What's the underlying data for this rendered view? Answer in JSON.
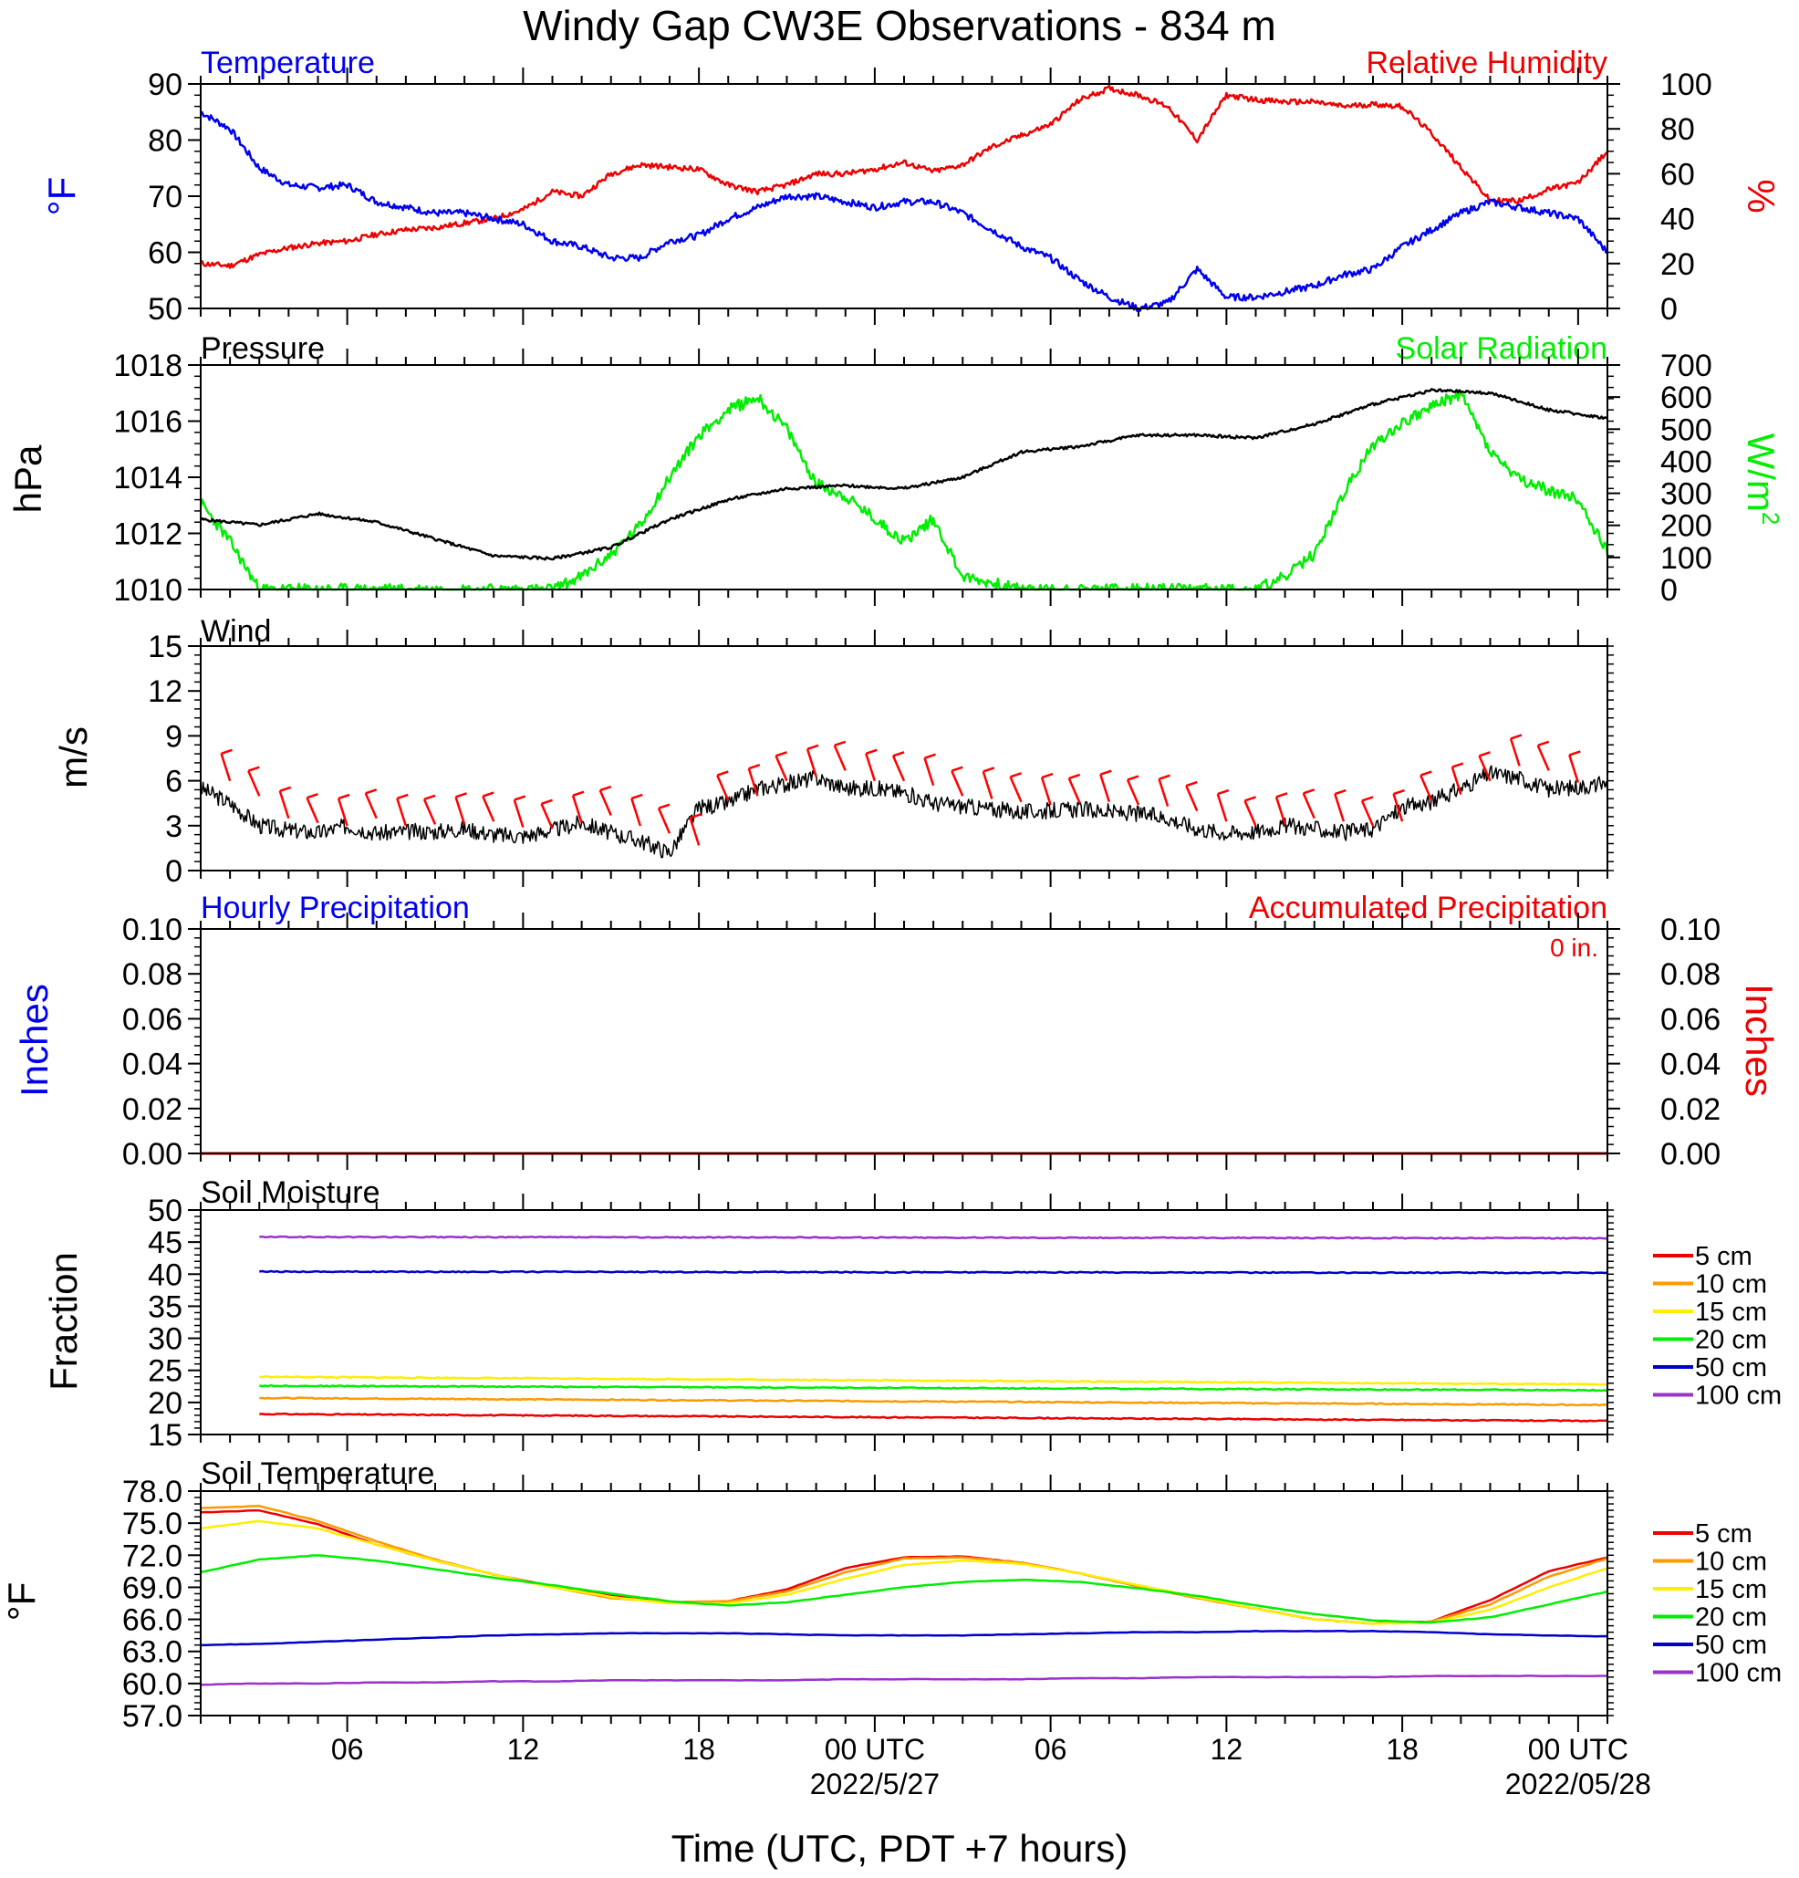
{
  "title": "Windy Gap CW3E Observations - 834 m",
  "xlabel": "Time (UTC, PDT +7 hours)",
  "colors": {
    "temperature": "#0000ee",
    "humidity": "#ee0000",
    "pressure": "#000000",
    "solar": "#00ee00",
    "wind_barb": "#ff0000",
    "accum": "#ee0000",
    "hourly": "#0000ee"
  },
  "x_axis": {
    "range_hours": [
      0,
      48
    ],
    "major_ticks": [
      {
        "h": 5,
        "label": "06",
        "date": ""
      },
      {
        "h": 11,
        "label": "12",
        "date": ""
      },
      {
        "h": 17,
        "label": "18",
        "date": ""
      },
      {
        "h": 23,
        "label": "00 UTC",
        "date": "2022/5/27"
      },
      {
        "h": 29,
        "label": "06",
        "date": ""
      },
      {
        "h": 35,
        "label": "12",
        "date": ""
      },
      {
        "h": 41,
        "label": "18",
        "date": ""
      },
      {
        "h": 47,
        "label": "00 UTC",
        "date": "2022/05/28"
      }
    ]
  },
  "panels": {
    "temp_rh": {
      "left_title": "Temperature",
      "right_title": "Relative Humidity",
      "left_unit": "°F",
      "right_unit": "%",
      "ylim_left": [
        50,
        90
      ],
      "yticks_left": [
        "50",
        "60",
        "70",
        "80",
        "90"
      ],
      "ylim_right": [
        0,
        100
      ],
      "yticks_right": [
        "0",
        "20",
        "40",
        "60",
        "80",
        "100"
      ]
    },
    "pressure_solar": {
      "left_title": "Pressure",
      "right_title": "Solar Radiation",
      "left_unit": "hPa",
      "right_unit": "W/m2",
      "ylim_left": [
        1010,
        1018
      ],
      "yticks_left": [
        "1010",
        "1012",
        "1014",
        "1016",
        "1018"
      ],
      "ylim_right": [
        0,
        700
      ],
      "yticks_right": [
        "0",
        "100",
        "200",
        "300",
        "400",
        "500",
        "600",
        "700"
      ]
    },
    "wind": {
      "left_title": "Wind",
      "left_unit": "m/s",
      "ylim": [
        0,
        15
      ],
      "yticks": [
        "0",
        "3",
        "6",
        "9",
        "12",
        "15"
      ]
    },
    "precip": {
      "left_title": "Hourly Precipitation",
      "right_title": "Accumulated Precipitation",
      "accum_label": "0 in.",
      "left_unit": "Inches",
      "right_unit": "Inches",
      "ylim": [
        0,
        0.1
      ],
      "yticks": [
        "0.00",
        "0.02",
        "0.04",
        "0.06",
        "0.08",
        "0.10"
      ]
    },
    "soil_moisture": {
      "left_title": "Soil Moisture",
      "left_unit": "Fraction",
      "ylim": [
        15,
        50
      ],
      "yticks": [
        "15",
        "20",
        "25",
        "30",
        "35",
        "40",
        "45",
        "50"
      ]
    },
    "soil_temp": {
      "left_title": "Soil Temperature",
      "left_unit": "°F",
      "ylim": [
        57,
        78
      ],
      "yticks": [
        "57.0",
        "60.0",
        "63.0",
        "66.0",
        "69.0",
        "72.0",
        "75.0",
        "78.0"
      ]
    }
  },
  "depth_legend": [
    {
      "label": "5 cm",
      "color": "#ee0000"
    },
    {
      "label": "10 cm",
      "color": "#ff9900"
    },
    {
      "label": "15 cm",
      "color": "#ffee00"
    },
    {
      "label": "20 cm",
      "color": "#00ee00"
    },
    {
      "label": "50 cm",
      "color": "#0000cc"
    },
    {
      "label": "100 cm",
      "color": "#9933cc"
    }
  ],
  "chart_data": [
    {
      "type": "line",
      "name": "Temperature (°F)",
      "x": [
        0,
        1,
        2,
        3,
        4,
        5,
        6,
        7,
        8,
        9,
        10,
        11,
        12,
        13,
        14,
        15,
        16,
        17,
        18,
        19,
        20,
        21,
        22,
        23,
        24,
        25,
        26,
        27,
        28,
        29,
        30,
        31,
        32,
        33,
        34,
        35,
        36,
        37,
        38,
        39,
        40,
        41,
        42,
        43,
        44,
        45,
        46,
        47,
        48
      ],
      "y": [
        85,
        82,
        75,
        72,
        71.5,
        72,
        69,
        68,
        67,
        67,
        66,
        65,
        62,
        61,
        59,
        59,
        62,
        63,
        66,
        68,
        70,
        70,
        69,
        68,
        69,
        69,
        67,
        64,
        61,
        59,
        55,
        52,
        50,
        51,
        57,
        52,
        52,
        53,
        54,
        56,
        57,
        61,
        64,
        67,
        69,
        68,
        67,
        66,
        60
      ]
    },
    {
      "type": "line",
      "name": "Relative Humidity (%)",
      "x": [
        0,
        1,
        2,
        3,
        4,
        5,
        6,
        7,
        8,
        9,
        10,
        11,
        12,
        13,
        14,
        15,
        16,
        17,
        18,
        19,
        20,
        21,
        22,
        23,
        24,
        25,
        26,
        27,
        28,
        29,
        30,
        31,
        32,
        33,
        34,
        35,
        36,
        37,
        38,
        39,
        40,
        41,
        42,
        43,
        44,
        45,
        46,
        47,
        48
      ],
      "y": [
        20,
        19,
        24,
        27,
        29,
        30,
        33,
        35,
        36,
        38,
        40,
        44,
        52,
        50,
        60,
        64,
        63,
        62,
        55,
        52,
        55,
        60,
        60,
        62,
        65,
        61,
        64,
        72,
        77,
        82,
        93,
        98,
        95,
        90,
        75,
        95,
        93,
        92,
        92,
        90,
        91,
        90,
        78,
        63,
        48,
        48,
        53,
        56,
        70
      ]
    },
    {
      "type": "line",
      "name": "Pressure (hPa)",
      "x": [
        0,
        2,
        4,
        6,
        8,
        10,
        12,
        14,
        16,
        18,
        20,
        22,
        24,
        26,
        28,
        30,
        32,
        34,
        36,
        38,
        40,
        42,
        44,
        46,
        48
      ],
      "y": [
        1012.5,
        1012.3,
        1012.7,
        1012.4,
        1011.8,
        1011.2,
        1011.1,
        1011.5,
        1012.5,
        1013.2,
        1013.6,
        1013.7,
        1013.6,
        1014,
        1014.9,
        1015.1,
        1015.5,
        1015.5,
        1015.4,
        1015.9,
        1016.6,
        1017.1,
        1017.0,
        1016.4,
        1016.1
      ]
    },
    {
      "type": "line",
      "name": "Solar Radiation (W/m2)",
      "x": [
        0,
        1,
        2,
        4,
        6,
        8,
        10,
        12,
        13,
        14,
        15,
        16,
        17,
        18,
        19,
        20,
        21,
        22,
        23,
        24,
        25,
        26,
        28,
        30,
        32,
        34,
        35,
        36,
        37,
        38,
        39,
        40,
        41,
        42,
        43,
        44,
        45,
        46,
        47,
        48
      ],
      "y": [
        270,
        150,
        0,
        0,
        0,
        0,
        0,
        0,
        40,
        110,
        200,
        350,
        480,
        560,
        600,
        500,
        330,
        290,
        220,
        150,
        220,
        40,
        0,
        0,
        0,
        0,
        0,
        0,
        40,
        110,
        300,
        450,
        520,
        570,
        610,
        430,
        340,
        310,
        280,
        120
      ]
    },
    {
      "type": "line",
      "name": "Wind speed (m/s)",
      "x": [
        0,
        1,
        2,
        3,
        4,
        5,
        6,
        7,
        8,
        9,
        10,
        11,
        12,
        13,
        14,
        15,
        16,
        17,
        18,
        19,
        20,
        21,
        22,
        23,
        24,
        25,
        26,
        27,
        28,
        29,
        30,
        31,
        32,
        33,
        34,
        35,
        36,
        37,
        38,
        39,
        40,
        41,
        42,
        43,
        44,
        45,
        46,
        47,
        48
      ],
      "y": [
        5.5,
        4.5,
        3,
        2.7,
        2.5,
        3,
        2.5,
        2.6,
        2.6,
        2.8,
        2.4,
        2.3,
        2.7,
        3.2,
        2.5,
        2,
        1.2,
        4.2,
        4.5,
        5.5,
        5.8,
        6.2,
        5.5,
        5.5,
        5.2,
        4.5,
        4.3,
        4.1,
        3.9,
        4,
        4.1,
        3.9,
        3.8,
        3.5,
        2.8,
        2.5,
        2.6,
        3.0,
        2.8,
        2.5,
        2.8,
        4.2,
        4.6,
        5.5,
        6.5,
        6.2,
        5.4,
        5.6,
        5.8
      ]
    },
    {
      "type": "line",
      "name": "Precipitation (in.)",
      "series": [
        {
          "name": "Hourly Precipitation",
          "x": [
            0,
            48
          ],
          "values": [
            0,
            0
          ]
        },
        {
          "name": "Accumulated Precipitation",
          "x": [
            0,
            48
          ],
          "values": [
            0,
            0
          ]
        }
      ]
    },
    {
      "type": "line",
      "name": "Soil Moisture (fraction)",
      "x": [
        2,
        48
      ],
      "series": [
        {
          "name": "5 cm",
          "values": [
            18.2,
            17.1
          ]
        },
        {
          "name": "10 cm",
          "values": [
            20.7,
            19.6
          ]
        },
        {
          "name": "15 cm",
          "values": [
            24.0,
            22.8
          ]
        },
        {
          "name": "20 cm",
          "values": [
            22.6,
            21.9
          ]
        },
        {
          "name": "50 cm",
          "values": [
            40.4,
            40.2
          ]
        },
        {
          "name": "100 cm",
          "values": [
            45.8,
            45.6
          ]
        }
      ]
    },
    {
      "type": "line",
      "name": "Soil Temperature (°F)",
      "x": [
        0,
        2,
        4,
        6,
        8,
        10,
        12,
        14,
        16,
        18,
        20,
        22,
        24,
        26,
        28,
        30,
        32,
        34,
        36,
        38,
        40,
        42,
        44,
        46,
        48
      ],
      "series": [
        {
          "name": "5 cm",
          "values": [
            76.0,
            76.2,
            74.9,
            73.0,
            71.5,
            70.2,
            69.1,
            68.2,
            67.6,
            67.7,
            68.8,
            70.8,
            71.8,
            71.9,
            71.3,
            70.3,
            69.1,
            68.0,
            67.0,
            66.0,
            65.6,
            65.8,
            67.8,
            70.5,
            71.8
          ]
        },
        {
          "name": "10 cm",
          "values": [
            76.4,
            76.6,
            75.2,
            73.3,
            71.6,
            70.2,
            69.0,
            68.0,
            67.6,
            67.7,
            68.6,
            70.4,
            71.7,
            71.8,
            71.3,
            70.3,
            69.1,
            68.0,
            67.0,
            66.0,
            65.6,
            65.8,
            67.4,
            70.0,
            71.7
          ]
        },
        {
          "name": "15 cm",
          "values": [
            74.5,
            75.2,
            74.5,
            73.0,
            71.5,
            70.2,
            69.0,
            68.1,
            67.5,
            67.5,
            68.3,
            69.8,
            71.1,
            71.5,
            71.2,
            70.3,
            69.2,
            68.1,
            67.0,
            66.0,
            65.6,
            65.7,
            66.9,
            69.0,
            70.8
          ]
        },
        {
          "name": "20 cm",
          "values": [
            70.4,
            71.6,
            72.0,
            71.5,
            70.7,
            69.9,
            69.2,
            68.4,
            67.7,
            67.3,
            67.6,
            68.3,
            69.0,
            69.5,
            69.7,
            69.5,
            68.9,
            68.2,
            67.3,
            66.5,
            65.9,
            65.7,
            66.2,
            67.4,
            68.6
          ]
        },
        {
          "name": "50 cm",
          "values": [
            63.6,
            63.7,
            63.9,
            64.1,
            64.3,
            64.5,
            64.6,
            64.7,
            64.7,
            64.7,
            64.6,
            64.5,
            64.5,
            64.5,
            64.6,
            64.7,
            64.8,
            64.8,
            64.9,
            64.9,
            64.9,
            64.8,
            64.6,
            64.5,
            64.4
          ]
        },
        {
          "name": "100 cm",
          "values": [
            59.9,
            60.0,
            60.0,
            60.1,
            60.1,
            60.2,
            60.2,
            60.3,
            60.3,
            60.3,
            60.3,
            60.4,
            60.4,
            60.4,
            60.4,
            60.5,
            60.5,
            60.6,
            60.6,
            60.6,
            60.6,
            60.7,
            60.7,
            60.7,
            60.7
          ]
        }
      ]
    }
  ]
}
